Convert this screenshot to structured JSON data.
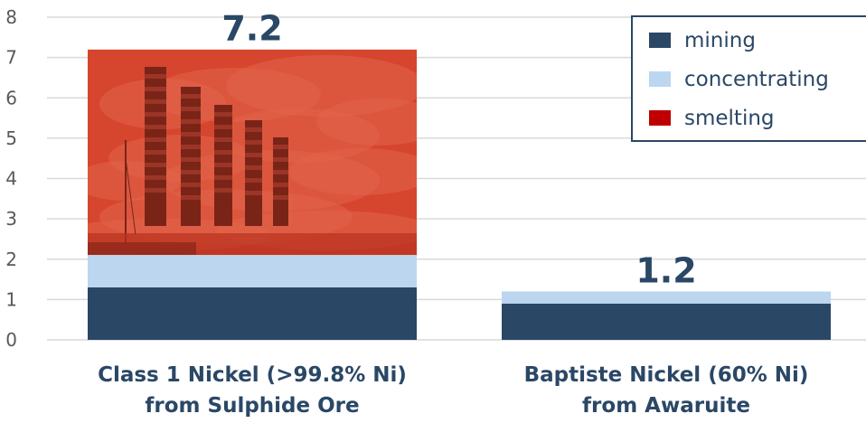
{
  "chart_data": {
    "type": "bar",
    "stacked": true,
    "categories": [
      "Class 1 Nickel (>99.8% Ni) from Sulphide Ore",
      "Baptiste Nickel (60% Ni) from Awaruite"
    ],
    "category_lines": [
      [
        "Class 1 Nickel (>99.8% Ni)",
        "from Sulphide Ore"
      ],
      [
        "Baptiste Nickel (60% Ni)",
        "from Awaruite"
      ]
    ],
    "series": [
      {
        "name": "mining",
        "values": [
          1.3,
          0.9
        ],
        "color": "#2a4766"
      },
      {
        "name": "concentrating",
        "values": [
          0.8,
          0.3
        ],
        "color": "#bcd6f0"
      },
      {
        "name": "smelting",
        "values": [
          5.1,
          0.0
        ],
        "color": "#c00000"
      }
    ],
    "totals": [
      "7.2",
      "1.2"
    ],
    "y_ticks": [
      "0",
      "1",
      "2",
      "3",
      "4",
      "5",
      "6",
      "7",
      "8"
    ],
    "ylim": [
      0,
      8
    ],
    "grid": true,
    "legend_position": "top-right",
    "smelting_image": "smokestacks-photo",
    "colors": {
      "label_text": "#2a4766",
      "tick_text": "#595959",
      "grid": "#d9d9d9",
      "legend_border": "#2a4766"
    }
  }
}
